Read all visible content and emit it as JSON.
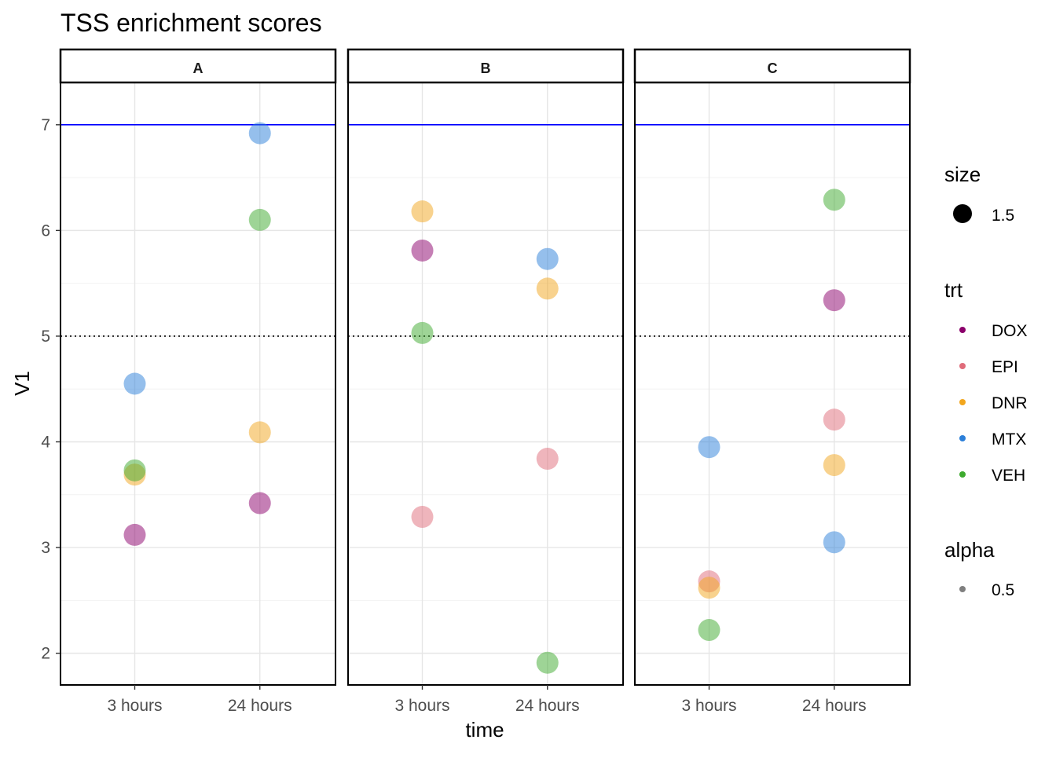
{
  "chart_data": {
    "type": "scatter",
    "title": "TSS enrichment scores",
    "xlabel": "time",
    "ylabel": "V1",
    "facets": [
      "A",
      "B",
      "C"
    ],
    "categories": [
      "3 hours",
      "24 hours"
    ],
    "ylim": [
      1.7,
      7.4
    ],
    "yticks": [
      2,
      3,
      4,
      5,
      6,
      7
    ],
    "ytick_labels": [
      "2",
      "3",
      "4",
      "5",
      "6",
      "7"
    ],
    "grid": true,
    "reference_lines": [
      {
        "y": 7,
        "style": "solid",
        "color": "#0000FF"
      },
      {
        "y": 5,
        "style": "dotted",
        "color": "#000000"
      }
    ],
    "series": [
      {
        "name": "DOX",
        "color": "#8B006B",
        "points": [
          {
            "facet": "A",
            "x": "3 hours",
            "y": 3.12
          },
          {
            "facet": "A",
            "x": "24 hours",
            "y": 3.42
          },
          {
            "facet": "B",
            "x": "3 hours",
            "y": 5.81
          },
          {
            "facet": "C",
            "x": "24 hours",
            "y": 5.34
          }
        ]
      },
      {
        "name": "EPI",
        "color": "#E06C7A",
        "points": [
          {
            "facet": "B",
            "x": "3 hours",
            "y": 3.29
          },
          {
            "facet": "B",
            "x": "24 hours",
            "y": 3.84
          },
          {
            "facet": "C",
            "x": "3 hours",
            "y": 2.68
          },
          {
            "facet": "C",
            "x": "24 hours",
            "y": 4.21
          }
        ]
      },
      {
        "name": "DNR",
        "color": "#F2A61D",
        "points": [
          {
            "facet": "A",
            "x": "3 hours",
            "y": 3.69
          },
          {
            "facet": "A",
            "x": "24 hours",
            "y": 4.09
          },
          {
            "facet": "B",
            "x": "3 hours",
            "y": 6.18
          },
          {
            "facet": "B",
            "x": "24 hours",
            "y": 5.45
          },
          {
            "facet": "C",
            "x": "3 hours",
            "y": 2.62
          },
          {
            "facet": "C",
            "x": "24 hours",
            "y": 3.78
          }
        ]
      },
      {
        "name": "MTX",
        "color": "#2C7FD9",
        "points": [
          {
            "facet": "A",
            "x": "3 hours",
            "y": 4.55
          },
          {
            "facet": "A",
            "x": "24 hours",
            "y": 6.92
          },
          {
            "facet": "B",
            "x": "24 hours",
            "y": 5.73
          },
          {
            "facet": "C",
            "x": "3 hours",
            "y": 3.95
          },
          {
            "facet": "C",
            "x": "24 hours",
            "y": 3.05
          }
        ]
      },
      {
        "name": "VEH",
        "color": "#3DAA2E",
        "points": [
          {
            "facet": "A",
            "x": "3 hours",
            "y": 3.73
          },
          {
            "facet": "A",
            "x": "24 hours",
            "y": 6.1
          },
          {
            "facet": "B",
            "x": "3 hours",
            "y": 5.03
          },
          {
            "facet": "B",
            "x": "24 hours",
            "y": 1.91
          },
          {
            "facet": "C",
            "x": "3 hours",
            "y": 2.22
          },
          {
            "facet": "C",
            "x": "24 hours",
            "y": 6.29
          }
        ]
      }
    ],
    "point_alpha": 0.5,
    "legend": {
      "placement": "right",
      "size": {
        "title": "size",
        "value_label": "1.5"
      },
      "trt": {
        "title": "trt",
        "entries": [
          "DOX",
          "EPI",
          "DNR",
          "MTX",
          "VEH"
        ]
      },
      "alpha": {
        "title": "alpha",
        "value_label": "0.5"
      }
    }
  }
}
